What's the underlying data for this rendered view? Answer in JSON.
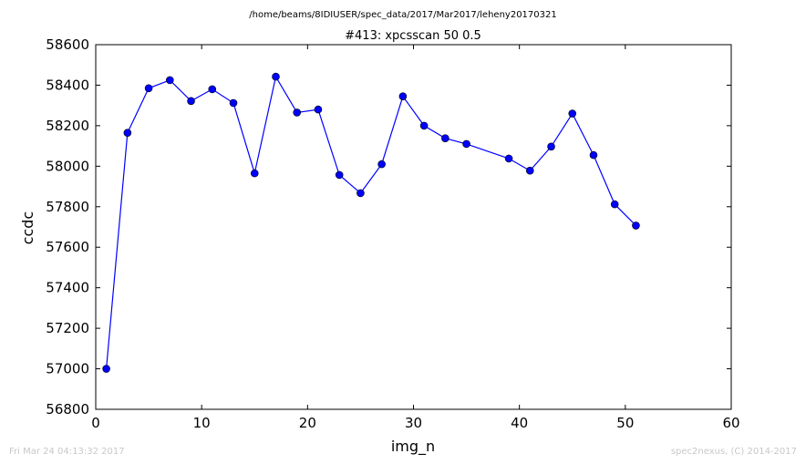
{
  "header": {
    "path": "/home/beams/8IDIUSER/spec_data/2017/Mar2017/leheny20170321"
  },
  "chart_data": {
    "type": "line",
    "title": "#413: xpcsscan 50 0.5",
    "xlabel": "img_n",
    "ylabel": "ccdc",
    "xlim": [
      0,
      60
    ],
    "ylim": [
      56800,
      58600
    ],
    "x_ticks": [
      0,
      10,
      20,
      30,
      40,
      50,
      60
    ],
    "y_ticks": [
      56800,
      57000,
      57200,
      57400,
      57600,
      57800,
      58000,
      58200,
      58400,
      58600
    ],
    "grid": false,
    "series_color": "#0000ff",
    "marker": "circle",
    "x": [
      1,
      3,
      5,
      7,
      9,
      11,
      13,
      15,
      17,
      19,
      21,
      23,
      25,
      27,
      29,
      31,
      33,
      35,
      39,
      41,
      43,
      45,
      47,
      49,
      51
    ],
    "y": [
      57000,
      58165,
      58385,
      58425,
      58322,
      58380,
      58312,
      57965,
      58442,
      58265,
      58280,
      57957,
      57867,
      58010,
      58345,
      58200,
      58138,
      58110,
      58038,
      57978,
      58097,
      58260,
      58055,
      57812,
      57707
    ]
  },
  "footer": {
    "timestamp": "Fri Mar 24 04:13:32 2017",
    "credit": "spec2nexus, (C) 2014-2017"
  }
}
